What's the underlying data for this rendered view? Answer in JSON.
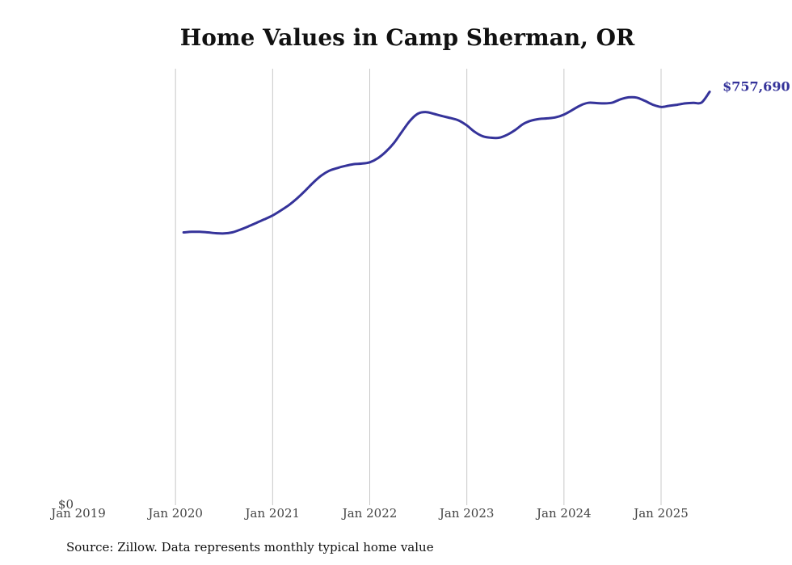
{
  "chart_data": {
    "type": "line",
    "title": "Home Values in Camp Sherman, OR",
    "source": "Source: Zillow. Data represents monthly typical home value",
    "xlabel": "",
    "ylabel": "",
    "y_tick_labels": [
      "$0"
    ],
    "x_tick_labels": [
      "Jan 2019",
      "Jan 2020",
      "Jan 2021",
      "Jan 2022",
      "Jan 2023",
      "Jan 2024",
      "Jan 2025"
    ],
    "ylim": [
      0,
      800000
    ],
    "xlim": [
      "2019-01",
      "2025-10"
    ],
    "grid": "vertical lines at each January",
    "end_value_label": "$757,690",
    "series": [
      {
        "color": "#35339a",
        "x": [
          "2020-02",
          "2020-03",
          "2020-04",
          "2020-05",
          "2020-06",
          "2020-07",
          "2020-08",
          "2020-09",
          "2020-10",
          "2020-11",
          "2020-12",
          "2021-01",
          "2021-02",
          "2021-03",
          "2021-04",
          "2021-05",
          "2021-06",
          "2021-07",
          "2021-08",
          "2021-09",
          "2021-10",
          "2021-11",
          "2021-12",
          "2022-01",
          "2022-02",
          "2022-03",
          "2022-04",
          "2022-05",
          "2022-06",
          "2022-07",
          "2022-08",
          "2022-09",
          "2022-10",
          "2022-11",
          "2022-12",
          "2023-01",
          "2023-02",
          "2023-03",
          "2023-04",
          "2023-05",
          "2023-06",
          "2023-07",
          "2023-08",
          "2023-09",
          "2023-10",
          "2023-11",
          "2023-12",
          "2024-01",
          "2024-02",
          "2024-03",
          "2024-04",
          "2024-05",
          "2024-06",
          "2024-07",
          "2024-08",
          "2024-09",
          "2024-10",
          "2024-11",
          "2024-12",
          "2025-01",
          "2025-02",
          "2025-03",
          "2025-04",
          "2025-05",
          "2025-06",
          "2025-07"
        ],
        "y": [
          500000,
          501000,
          501000,
          500000,
          498500,
          498000,
          500000,
          505000,
          511000,
          517500,
          524000,
          531000,
          540000,
          550000,
          562000,
          576000,
          591000,
          604000,
          613000,
          618000,
          622000,
          625000,
          626000,
          628500,
          636000,
          648000,
          664000,
          685000,
          705000,
          718000,
          720500,
          717000,
          713000,
          709500,
          705000,
          696000,
          684000,
          676000,
          673500,
          673500,
          679000,
          688000,
          699000,
          705000,
          708000,
          709000,
          711000,
          716000,
          724000,
          732500,
          737500,
          737000,
          736500,
          738000,
          744000,
          747500,
          747000,
          741000,
          734000,
          730000,
          732000,
          734000,
          736500,
          737500,
          738000,
          757690
        ]
      }
    ]
  }
}
